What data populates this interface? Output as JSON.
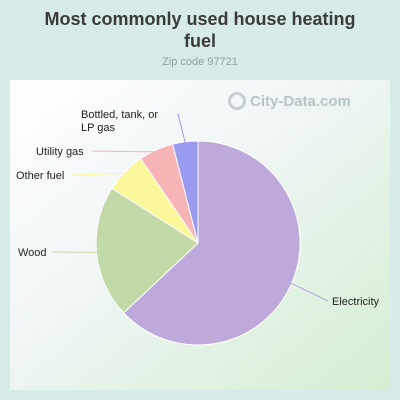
{
  "title": "Most commonly used house heating fuel",
  "subtitle": "Zip code 97721",
  "watermark": "City-Data.com",
  "chart_data": {
    "type": "pie",
    "title": "Most commonly used house heating fuel",
    "subtitle": "Zip code 97721",
    "slices": [
      {
        "label": "Electricity",
        "value": 63.0,
        "color": "#bda9da"
      },
      {
        "label": "Wood",
        "value": 21.0,
        "color": "#c4d9a8"
      },
      {
        "label": "Other fuel",
        "value": 6.5,
        "color": "#fbf89b"
      },
      {
        "label": "Utility gas",
        "value": 5.5,
        "color": "#f6b4b5"
      },
      {
        "label": "Bottled, tank, or LP gas",
        "value": 4.0,
        "color": "#9a9af0"
      }
    ]
  }
}
